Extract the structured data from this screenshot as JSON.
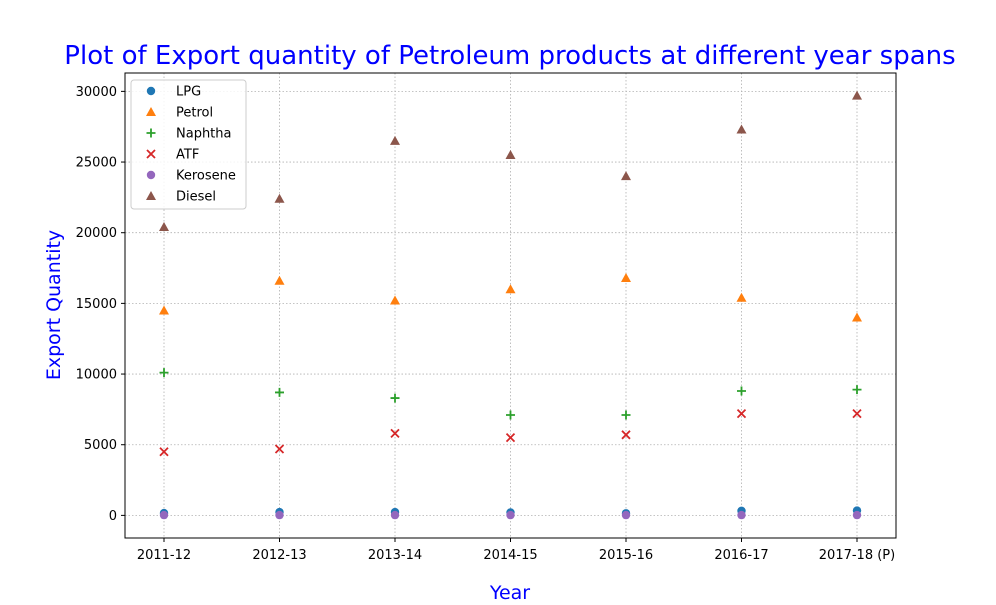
{
  "chart_data": {
    "type": "scatter",
    "title": "Plot of Export quantity of Petroleum products at different year spans",
    "xlabel": "Year",
    "ylabel": "Export Quantity",
    "categories": [
      "2011-12",
      "2012-13",
      "2013-14",
      "2014-15",
      "2015-16",
      "2016-17",
      "2017-18 (P)"
    ],
    "ylim": [
      -1600,
      31300
    ],
    "yticks": [
      0,
      5000,
      10000,
      15000,
      20000,
      25000,
      30000
    ],
    "grid": true,
    "legend_position": "top-left",
    "series": [
      {
        "name": "LPG",
        "marker": "circle",
        "color": "#1f77b4",
        "values": [
          160,
          230,
          230,
          210,
          150,
          320,
          340
        ]
      },
      {
        "name": "Petrol",
        "marker": "triangle",
        "color": "#ff7f0e",
        "values": [
          14500,
          16600,
          15200,
          16000,
          16800,
          15400,
          14000
        ]
      },
      {
        "name": "Naphtha",
        "marker": "plus",
        "color": "#2ca02c",
        "values": [
          10100,
          8700,
          8300,
          7100,
          7100,
          8800,
          8900
        ]
      },
      {
        "name": "ATF",
        "marker": "x",
        "color": "#d62728",
        "values": [
          4500,
          4700,
          5800,
          5500,
          5700,
          7200,
          7200
        ]
      },
      {
        "name": "Kerosene",
        "marker": "circle",
        "color": "#9467bd",
        "values": [
          20,
          20,
          20,
          20,
          20,
          20,
          20
        ]
      },
      {
        "name": "Diesel",
        "marker": "triangle",
        "color": "#8c564b",
        "values": [
          20400,
          22400,
          26500,
          25500,
          24000,
          27300,
          29700
        ]
      }
    ]
  }
}
